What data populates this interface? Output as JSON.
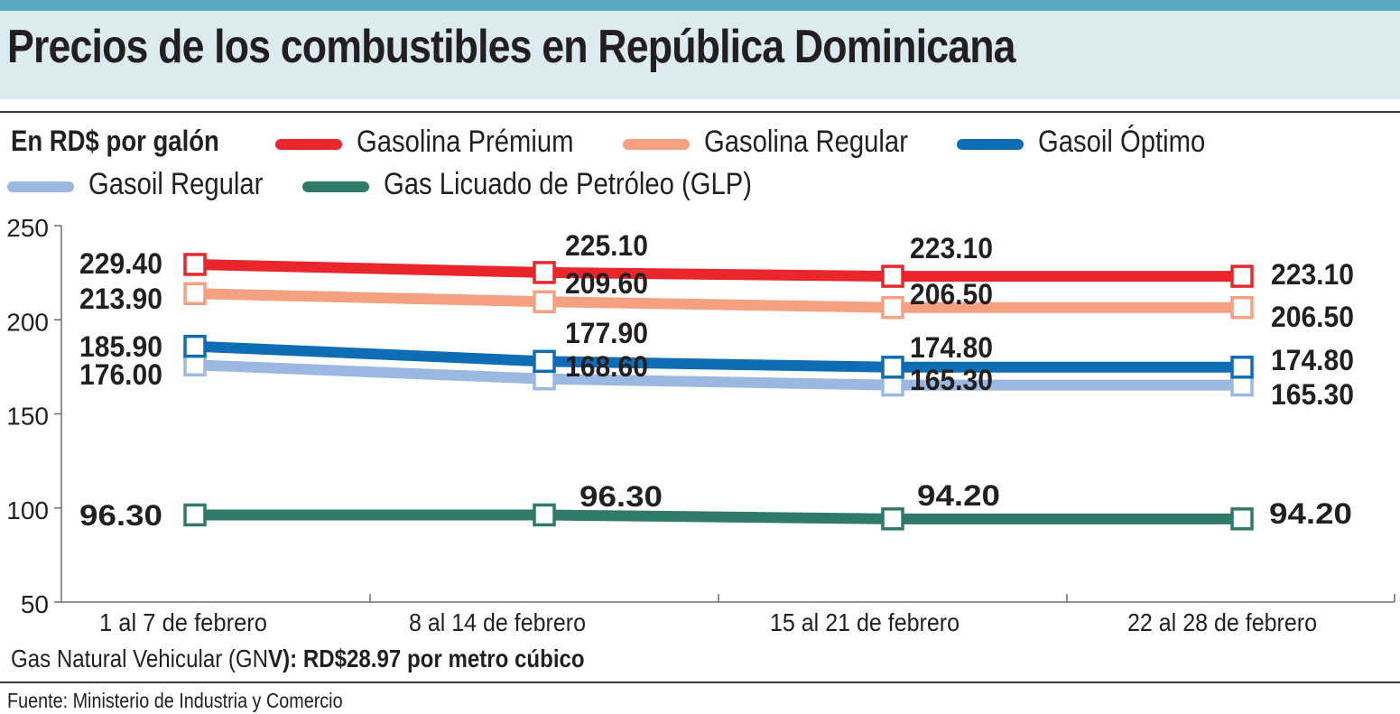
{
  "title": "Precios de los combustibles en República Dominicana",
  "unit_label": "En RD$ por galón",
  "note": {
    "prefix": "Gas Natural Vehicular (GN",
    "bold": "V): RD$28.97 por metro cúbico"
  },
  "source": "Fuente: Ministerio de Industria y Comercio",
  "chart_data": {
    "type": "line",
    "categories": [
      "1 al 7 de febrero",
      "8 al 14 de febrero",
      "15 al 21 de febrero",
      "22 al 28 de febrero"
    ],
    "ylim": [
      50,
      250
    ],
    "yticks": [
      50,
      100,
      150,
      200,
      250
    ],
    "grid": false,
    "legend": "top",
    "series": [
      {
        "name": "Gasolina Prémium",
        "color": "#e8262b",
        "values": [
          229.4,
          225.1,
          223.1,
          223.1
        ],
        "labels": [
          "229.40",
          "225.10",
          "223.10",
          "223.10"
        ]
      },
      {
        "name": "Gasolina Regular",
        "color": "#f4a081",
        "values": [
          213.9,
          209.6,
          206.5,
          206.5
        ],
        "labels": [
          "213.90",
          "209.60",
          "206.50",
          "206.50"
        ]
      },
      {
        "name": "Gasoil Óptimo",
        "color": "#0e6db5",
        "values": [
          185.9,
          177.9,
          174.8,
          174.8
        ],
        "labels": [
          "185.90",
          "177.90",
          "174.80",
          "174.80"
        ]
      },
      {
        "name": "Gasoil Regular",
        "color": "#9bb9e0",
        "values": [
          176.0,
          168.6,
          165.3,
          165.3
        ],
        "labels": [
          "176.00",
          "168.60",
          "165.30",
          "165.30"
        ]
      },
      {
        "name": "Gas Licuado de Petróleo (GLP)",
        "color": "#2f7a68",
        "values": [
          96.3,
          96.3,
          94.2,
          94.2
        ],
        "labels": [
          "96.30",
          "96.30",
          "94.20",
          "94.20"
        ]
      }
    ]
  }
}
